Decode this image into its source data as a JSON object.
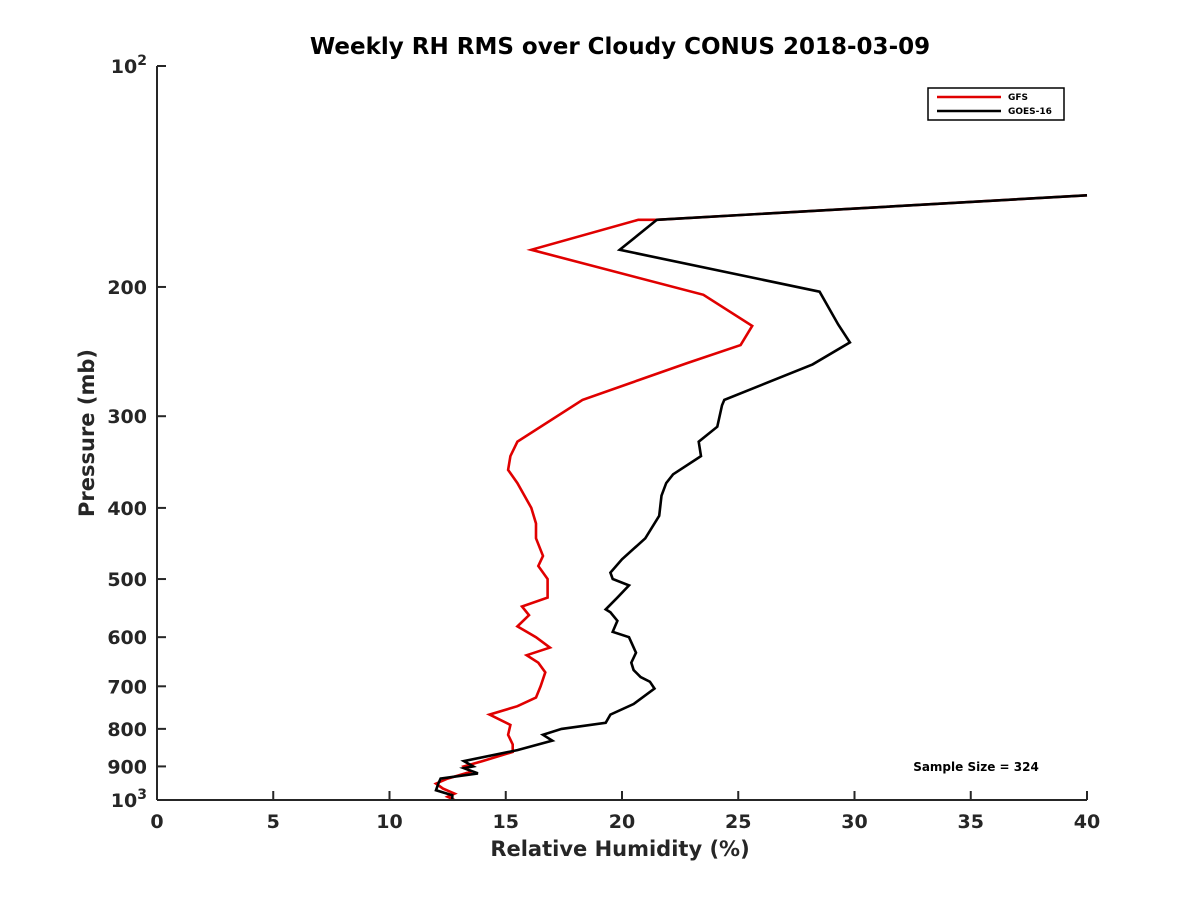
{
  "chart_data": {
    "type": "line",
    "title": "Weekly RH RMS over Cloudy CONUS 2018-03-09",
    "xlabel": "Relative Humidity (%)",
    "ylabel": "Pressure (mb)",
    "xlim": [
      0,
      40
    ],
    "ylim": [
      100,
      1000
    ],
    "y_scale": "log",
    "y_reversed": true,
    "grid": false,
    "legend_position": "top-right",
    "x_ticks": [
      "0",
      "5",
      "10",
      "15",
      "20",
      "25",
      "30",
      "35",
      "40"
    ],
    "y_ticks": [
      {
        "value": 100,
        "base": "10",
        "exp": "2"
      },
      {
        "value": 200,
        "label": "200"
      },
      {
        "value": 300,
        "label": "300"
      },
      {
        "value": 400,
        "label": "400"
      },
      {
        "value": 500,
        "label": "500"
      },
      {
        "value": 600,
        "label": "600"
      },
      {
        "value": 700,
        "label": "700"
      },
      {
        "value": 800,
        "label": "800"
      },
      {
        "value": 900,
        "label": "900"
      },
      {
        "value": 1000,
        "base": "10",
        "exp": "3"
      }
    ],
    "annotation": "Sample Size = 324",
    "series": [
      {
        "name": "GFS",
        "color": "#e00000",
        "points": [
          [
            12.8,
            1000
          ],
          [
            12.5,
            990
          ],
          [
            12.8,
            980
          ],
          [
            12.3,
            965
          ],
          [
            12.0,
            950
          ],
          [
            12.5,
            935
          ],
          [
            13.5,
            915
          ],
          [
            13.2,
            900
          ],
          [
            14.0,
            885
          ],
          [
            15.3,
            860
          ],
          [
            15.3,
            840
          ],
          [
            15.1,
            815
          ],
          [
            15.2,
            790
          ],
          [
            14.3,
            765
          ],
          [
            15.5,
            745
          ],
          [
            16.3,
            725
          ],
          [
            16.5,
            700
          ],
          [
            16.7,
            670
          ],
          [
            16.4,
            650
          ],
          [
            15.9,
            635
          ],
          [
            16.9,
            620
          ],
          [
            16.3,
            600
          ],
          [
            15.5,
            580
          ],
          [
            16.0,
            560
          ],
          [
            15.7,
            545
          ],
          [
            16.8,
            530
          ],
          [
            16.8,
            510
          ],
          [
            16.8,
            500
          ],
          [
            16.4,
            480
          ],
          [
            16.6,
            465
          ],
          [
            16.3,
            440
          ],
          [
            16.3,
            420
          ],
          [
            16.1,
            400
          ],
          [
            15.5,
            370
          ],
          [
            15.1,
            355
          ],
          [
            15.2,
            340
          ],
          [
            15.5,
            325
          ],
          [
            18.3,
            285
          ],
          [
            22.8,
            254
          ],
          [
            25.1,
            240
          ],
          [
            25.6,
            226
          ],
          [
            23.5,
            205
          ],
          [
            16.1,
            178
          ],
          [
            20.7,
            162
          ],
          [
            21.5,
            162
          ],
          [
            40.0,
            150
          ]
        ]
      },
      {
        "name": "GOES-16",
        "color": "#000000",
        "points": [
          [
            12.7,
            1000
          ],
          [
            12.7,
            985
          ],
          [
            12.0,
            970
          ],
          [
            12.1,
            950
          ],
          [
            12.2,
            935
          ],
          [
            13.8,
            920
          ],
          [
            13.2,
            905
          ],
          [
            13.6,
            900
          ],
          [
            13.2,
            885
          ],
          [
            15.5,
            855
          ],
          [
            17.0,
            830
          ],
          [
            16.6,
            815
          ],
          [
            17.4,
            800
          ],
          [
            19.3,
            785
          ],
          [
            19.5,
            765
          ],
          [
            20.5,
            740
          ],
          [
            21.4,
            705
          ],
          [
            21.2,
            690
          ],
          [
            20.8,
            680
          ],
          [
            20.5,
            665
          ],
          [
            20.4,
            650
          ],
          [
            20.6,
            630
          ],
          [
            20.3,
            600
          ],
          [
            19.6,
            590
          ],
          [
            19.8,
            570
          ],
          [
            19.5,
            555
          ],
          [
            19.3,
            550
          ],
          [
            19.8,
            530
          ],
          [
            20.3,
            510
          ],
          [
            19.6,
            500
          ],
          [
            19.5,
            490
          ],
          [
            20.0,
            470
          ],
          [
            21.0,
            440
          ],
          [
            21.6,
            410
          ],
          [
            21.7,
            385
          ],
          [
            21.9,
            370
          ],
          [
            22.2,
            360
          ],
          [
            23.4,
            340
          ],
          [
            23.3,
            325
          ],
          [
            24.1,
            310
          ],
          [
            24.3,
            290
          ],
          [
            24.4,
            285
          ],
          [
            28.2,
            255
          ],
          [
            29.8,
            238
          ],
          [
            29.3,
            225
          ],
          [
            28.5,
            203
          ],
          [
            19.9,
            178
          ],
          [
            21.5,
            162
          ],
          [
            40.0,
            150
          ]
        ]
      }
    ]
  }
}
